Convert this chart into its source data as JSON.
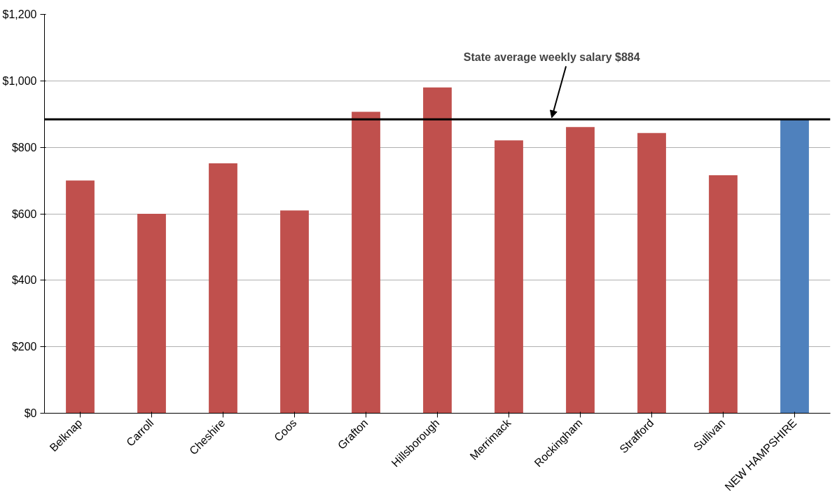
{
  "chart_data": {
    "type": "bar",
    "categories": [
      "Belknap",
      "Carroll",
      "Cheshire",
      "Coos",
      "Grafton",
      "Hillsborough",
      "Merrimack",
      "Rockingham",
      "Strafford",
      "Sullivan",
      "NEW HAMPSHIRE"
    ],
    "values": [
      700,
      600,
      752,
      610,
      907,
      980,
      821,
      861,
      843,
      716,
      884
    ],
    "colors": [
      "#c0504d",
      "#c0504d",
      "#c0504d",
      "#c0504d",
      "#c0504d",
      "#c0504d",
      "#c0504d",
      "#c0504d",
      "#c0504d",
      "#c0504d",
      "#4f81bd"
    ],
    "ylim": [
      0,
      1200
    ],
    "yticks": [
      {
        "value": 0,
        "label": "$0"
      },
      {
        "value": 200,
        "label": "$200"
      },
      {
        "value": 400,
        "label": "$400"
      },
      {
        "value": 600,
        "label": "$600"
      },
      {
        "value": 800,
        "label": "$800"
      },
      {
        "value": 1000,
        "label": "$1,000"
      },
      {
        "value": 1200,
        "label": "$1,200"
      }
    ],
    "grid": "y",
    "ref_lines": [
      {
        "axis": "y",
        "value": 884,
        "label": "State average weekly salary $884",
        "color": "#000000"
      }
    ]
  }
}
